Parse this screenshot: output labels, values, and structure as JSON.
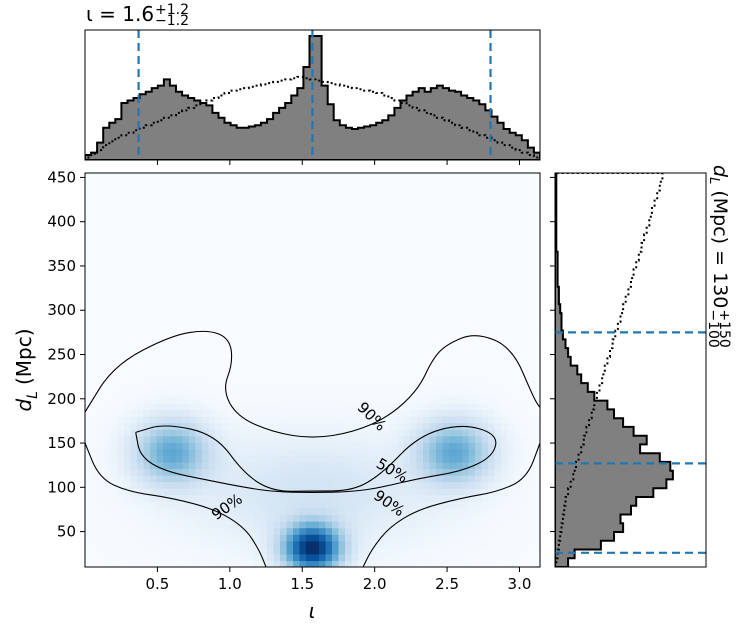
{
  "chart_data": [
    {
      "type": "heatmap",
      "panel": "joint",
      "xlabel": "ι",
      "ylabel_main": "d",
      "ylabel_sub": "L",
      "ylabel_unit": "(Mpc)",
      "xlim": [
        0.0,
        3.1416
      ],
      "ylim": [
        10,
        455
      ],
      "xticks": [
        "0.5",
        "1.0",
        "1.5",
        "2.0",
        "2.5",
        "3.0"
      ],
      "xtick_values": [
        0.5,
        1.0,
        1.5,
        2.0,
        2.5,
        3.0
      ],
      "yticks": [
        "50",
        "100",
        "150",
        "200",
        "250",
        "300",
        "350",
        "400",
        "450"
      ],
      "ytick_values": [
        50,
        100,
        150,
        200,
        250,
        300,
        350,
        400,
        450
      ],
      "colormap": "Blues",
      "density_components": [
        {
          "x": 0.6,
          "y": 140,
          "sx": 0.17,
          "sy": 24,
          "w": 0.45
        },
        {
          "x": 2.55,
          "y": 140,
          "sx": 0.17,
          "sy": 24,
          "w": 0.45
        },
        {
          "x": 1.57,
          "y": 32,
          "sx": 0.13,
          "sy": 18,
          "w": 1.0
        },
        {
          "x": 1.57,
          "y": 95,
          "sx": 0.55,
          "sy": 40,
          "w": 0.12
        }
      ],
      "contours": [
        {
          "level": "90%",
          "points": [
            [
              0.0,
              185
            ],
            [
              0.2,
              238
            ],
            [
              0.6,
              272
            ],
            [
              0.85,
              278
            ],
            [
              1.0,
              268
            ],
            [
              1.02,
              240
            ],
            [
              0.95,
              210
            ],
            [
              1.05,
              180
            ],
            [
              1.3,
              162
            ],
            [
              1.57,
              155
            ],
            [
              1.85,
              162
            ],
            [
              2.1,
              180
            ],
            [
              2.3,
              210
            ],
            [
              2.4,
              245
            ],
            [
              2.5,
              262
            ],
            [
              2.7,
              275
            ],
            [
              2.95,
              258
            ],
            [
              3.1,
              200
            ],
            [
              3.1416,
              190
            ]
          ]
        },
        {
          "level": "90%",
          "points": [
            [
              0.0,
              150
            ],
            [
              0.1,
              110
            ],
            [
              0.3,
              95
            ],
            [
              0.6,
              88
            ],
            [
              0.9,
              75
            ],
            [
              1.1,
              55
            ],
            [
              1.2,
              30
            ],
            [
              1.25,
              10
            ]
          ]
        },
        {
          "level": "90%",
          "points": [
            [
              3.1416,
              150
            ],
            [
              3.05,
              110
            ],
            [
              2.85,
              95
            ],
            [
              2.6,
              88
            ],
            [
              2.3,
              75
            ],
            [
              2.1,
              55
            ],
            [
              1.98,
              30
            ],
            [
              1.92,
              10
            ]
          ]
        },
        {
          "level": "50%",
          "points": [
            [
              0.35,
              162
            ],
            [
              0.55,
              172
            ],
            [
              0.9,
              160
            ],
            [
              1.1,
              115
            ],
            [
              1.3,
              95
            ],
            [
              1.57,
              96
            ],
            [
              1.85,
              96
            ],
            [
              2.05,
              115
            ],
            [
              2.3,
              158
            ],
            [
              2.6,
              172
            ],
            [
              2.85,
              160
            ],
            [
              2.82,
              135
            ],
            [
              2.6,
              118
            ],
            [
              2.3,
              110
            ],
            [
              2.05,
              100
            ],
            [
              1.85,
              95
            ],
            [
              1.57,
              94
            ],
            [
              1.3,
              95
            ],
            [
              1.1,
              100
            ],
            [
              0.85,
              108
            ],
            [
              0.55,
              118
            ],
            [
              0.38,
              135
            ],
            [
              0.35,
              162
            ]
          ]
        }
      ],
      "contour_labels": [
        {
          "text": "90%",
          "x": 0.98,
          "y": 78,
          "rotation": 35
        },
        {
          "text": "90%",
          "x": 2.1,
          "y": 82,
          "rotation": -35
        },
        {
          "text": "90%",
          "x": 1.98,
          "y": 180,
          "rotation": -45
        },
        {
          "text": "50%",
          "x": 2.12,
          "y": 119,
          "rotation": -30
        }
      ]
    },
    {
      "type": "bar",
      "panel": "top-marginal",
      "title_prefix": "ι = 1.6",
      "title_sup": "+1.2",
      "title_sub": "−1.2",
      "x_range": [
        0.0,
        3.1416
      ],
      "series": [
        {
          "style": "filled-step",
          "color": "#808080",
          "values": [
            0.04,
            0.06,
            0.14,
            0.26,
            0.3,
            0.33,
            0.46,
            0.48,
            0.5,
            0.53,
            0.55,
            0.58,
            0.6,
            0.65,
            0.6,
            0.55,
            0.52,
            0.5,
            0.48,
            0.46,
            0.44,
            0.38,
            0.34,
            0.3,
            0.28,
            0.26,
            0.26,
            0.27,
            0.28,
            0.3,
            0.33,
            0.38,
            0.42,
            0.46,
            0.52,
            0.58,
            0.75,
            1.0,
            1.0,
            0.6,
            0.45,
            0.32,
            0.28,
            0.26,
            0.25,
            0.26,
            0.27,
            0.28,
            0.3,
            0.32,
            0.36,
            0.42,
            0.48,
            0.52,
            0.55,
            0.58,
            0.55,
            0.58,
            0.6,
            0.58,
            0.56,
            0.55,
            0.52,
            0.5,
            0.48,
            0.45,
            0.4,
            0.35,
            0.3,
            0.25,
            0.22,
            0.2,
            0.16,
            0.1,
            0.06
          ]
        },
        {
          "style": "dotted-step",
          "color": "#000000",
          "values": [
            0.02,
            0.05,
            0.08,
            0.12,
            0.15,
            0.18,
            0.2,
            0.22,
            0.24,
            0.26,
            0.28,
            0.3,
            0.32,
            0.34,
            0.36,
            0.38,
            0.4,
            0.42,
            0.44,
            0.46,
            0.48,
            0.5,
            0.52,
            0.54,
            0.56,
            0.57,
            0.58,
            0.59,
            0.6,
            0.61,
            0.62,
            0.63,
            0.64,
            0.65,
            0.66,
            0.67,
            0.66,
            0.65,
            0.64,
            0.63,
            0.62,
            0.61,
            0.6,
            0.59,
            0.58,
            0.57,
            0.56,
            0.55,
            0.54,
            0.52,
            0.5,
            0.48,
            0.46,
            0.44,
            0.42,
            0.4,
            0.38,
            0.36,
            0.34,
            0.32,
            0.3,
            0.28,
            0.26,
            0.24,
            0.22,
            0.2,
            0.18,
            0.16,
            0.14,
            0.12,
            0.1,
            0.08,
            0.06,
            0.04,
            0.02
          ]
        }
      ],
      "reference_lines": [
        0.37,
        1.57,
        2.8
      ],
      "reference_color": "#1f77b4"
    },
    {
      "type": "bar",
      "panel": "right-marginal",
      "orientation": "horizontal",
      "title_prefix": "d",
      "title_sub_letter": "L",
      "title_middle": " (Mpc) = 130",
      "title_sup": "+150",
      "title_sub": "−100",
      "y_range": [
        10,
        455
      ],
      "series": [
        {
          "style": "filled-step",
          "color": "#808080",
          "values": [
            0.1,
            0.15,
            0.35,
            0.45,
            0.52,
            0.5,
            0.58,
            0.62,
            0.75,
            0.85,
            0.9,
            0.88,
            0.8,
            0.65,
            0.7,
            0.6,
            0.52,
            0.45,
            0.4,
            0.3,
            0.25,
            0.2,
            0.17,
            0.12,
            0.1,
            0.08,
            0.06,
            0.05,
            0.05,
            0.04,
            0.03,
            0.03,
            0.02,
            0.02,
            0.02,
            0.02,
            0.01,
            0.01,
            0.01,
            0.01,
            0.01,
            0.01,
            0.01,
            0.01,
            0.01
          ]
        },
        {
          "style": "dotted-step",
          "color": "#000000",
          "values": [
            0.01,
            0.02,
            0.03,
            0.04,
            0.05,
            0.06,
            0.07,
            0.08,
            0.1,
            0.12,
            0.14,
            0.16,
            0.18,
            0.2,
            0.22,
            0.24,
            0.26,
            0.28,
            0.3,
            0.32,
            0.34,
            0.36,
            0.38,
            0.4,
            0.42,
            0.44,
            0.46,
            0.48,
            0.5,
            0.52,
            0.54,
            0.56,
            0.58,
            0.6,
            0.62,
            0.64,
            0.66,
            0.68,
            0.7,
            0.72,
            0.74,
            0.76,
            0.78,
            0.8,
            0.82
          ]
        }
      ],
      "reference_lines": [
        26,
        127,
        275
      ],
      "reference_color": "#1f77b4"
    }
  ]
}
